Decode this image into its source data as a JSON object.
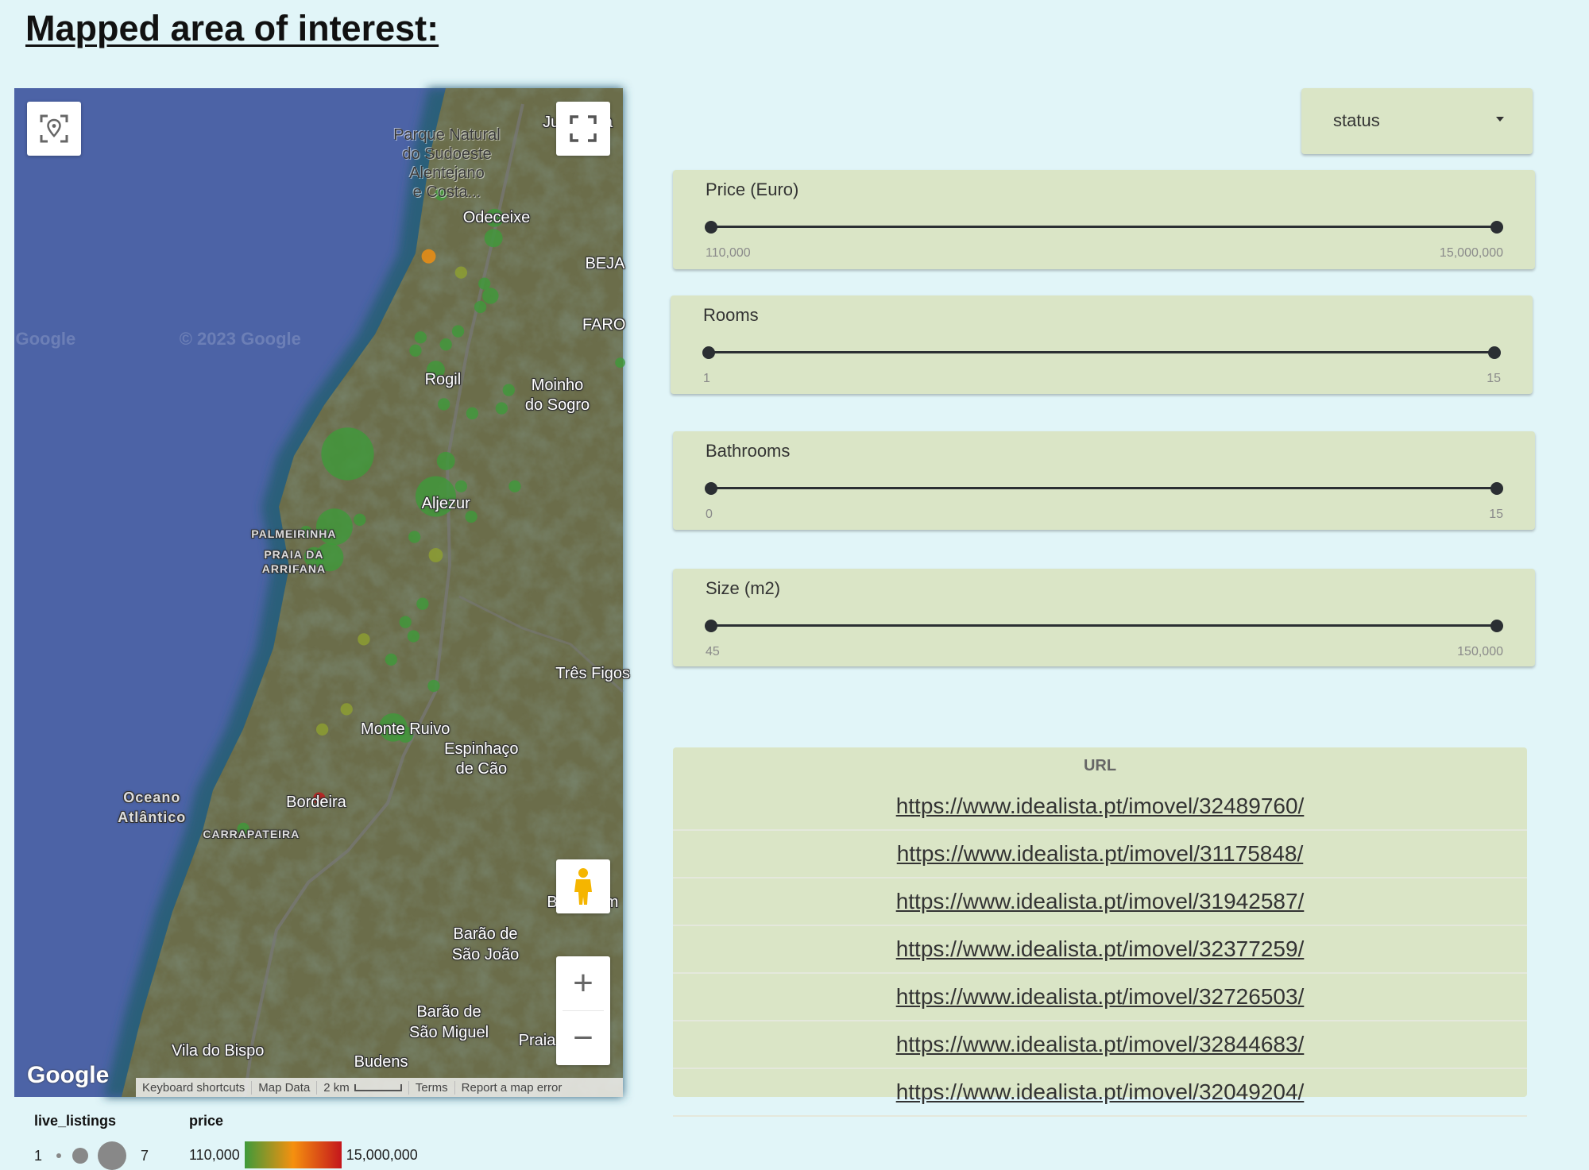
{
  "page": {
    "title": "Mapped area of interest:"
  },
  "map": {
    "labels": [
      "Parque Natural",
      "do Sudoeste",
      "Alentejano",
      "e Costa...",
      "Odeceixe",
      "BEJA",
      "FARO",
      "Rogil",
      "Moinho",
      "do Sogro",
      "Aljezur",
      "PALMEIRINHA",
      "PRAIA DA",
      "ARRIFANA",
      "Três Figos",
      "Monte Ruivo",
      "Espinhaço",
      "de Cão",
      "Oceano",
      "Atlântico",
      "Bordeira",
      "CARRAPATEIRA",
      "Bensafrim",
      "Barão de",
      "São João",
      "Barão de",
      "São Miguel",
      "Praia",
      "Budens",
      "Vila do Bispo",
      "Junqueira"
    ],
    "watermarks": [
      "Google",
      "© 2023 Google"
    ],
    "logo": "Google",
    "attribution": {
      "keyboard": "Keyboard shortcuts",
      "map_data": "Map Data",
      "scale": "2 km",
      "terms": "Terms",
      "report": "Report a map error"
    },
    "controls": {
      "locate": "locate-icon",
      "fullscreen": "fullscreen-icon",
      "pegman": "pegman-icon",
      "zoom_in": "+",
      "zoom_out": "−"
    }
  },
  "filters": {
    "status_dropdown": {
      "selected": "status"
    },
    "sliders": [
      {
        "label": "Price (Euro)",
        "min": "110,000",
        "max": "15,000,000",
        "low_fraction": 0,
        "high_fraction": 1
      },
      {
        "label": "Rooms",
        "min": "1",
        "max": "15",
        "low_fraction": 0,
        "high_fraction": 1
      },
      {
        "label": "Bathrooms",
        "min": "0",
        "max": "15",
        "low_fraction": 0,
        "high_fraction": 1
      },
      {
        "label": "Size (m2)",
        "min": "45",
        "max": "150,000",
        "low_fraction": 0,
        "high_fraction": 1
      }
    ]
  },
  "table": {
    "header": "URL",
    "rows": [
      "https://www.idealista.pt/imovel/32489760/",
      "https://www.idealista.pt/imovel/31175848/",
      "https://www.idealista.pt/imovel/31942587/",
      "https://www.idealista.pt/imovel/32377259/",
      "https://www.idealista.pt/imovel/32726503/",
      "https://www.idealista.pt/imovel/32844683/",
      "https://www.idealista.pt/imovel/32049204/"
    ]
  },
  "legend": {
    "size_title": "live_listings",
    "size_min": "1",
    "size_max": "7",
    "color_title": "price",
    "color_min": "110,000",
    "color_max": "15,000,000",
    "colors": {
      "low": "#3f9a3a",
      "mid": "#f5900f",
      "high": "#c4161c"
    }
  }
}
